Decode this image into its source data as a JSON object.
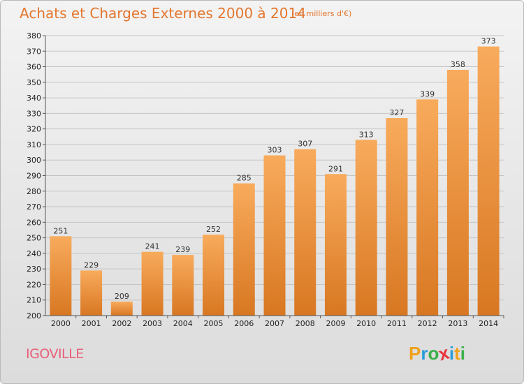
{
  "title": "Achats et Charges Externes 2000 à 2014",
  "unit": "(en milliers d'€)",
  "commune": "IGOVILLE",
  "logo": {
    "letters": [
      "P",
      "r",
      "o",
      "x",
      "i",
      "t",
      "i"
    ],
    "colors": [
      "#f0a11a",
      "#2a9bd8",
      "#3ab04b",
      "#e8343b",
      "#2a9bd8",
      "#f0a11a",
      "#3ab04b"
    ]
  },
  "colors": {
    "bar_light": "#f8ab5c",
    "bar_dark": "#d87722",
    "title": "#e3762e",
    "commune": "#e85f78"
  },
  "chart_data": {
    "type": "bar",
    "categories": [
      "2000",
      "2001",
      "2002",
      "2003",
      "2004",
      "2005",
      "2006",
      "2007",
      "2008",
      "2009",
      "2010",
      "2011",
      "2012",
      "2013",
      "2014"
    ],
    "values": [
      251,
      229,
      209,
      241,
      239,
      252,
      285,
      303,
      307,
      291,
      313,
      327,
      339,
      358,
      373
    ],
    "ylim": [
      200,
      380
    ],
    "yticks": [
      200,
      210,
      220,
      230,
      240,
      250,
      260,
      270,
      280,
      290,
      300,
      310,
      320,
      330,
      340,
      350,
      360,
      370,
      380
    ],
    "grid": true,
    "xlabel": "",
    "ylabel": ""
  }
}
